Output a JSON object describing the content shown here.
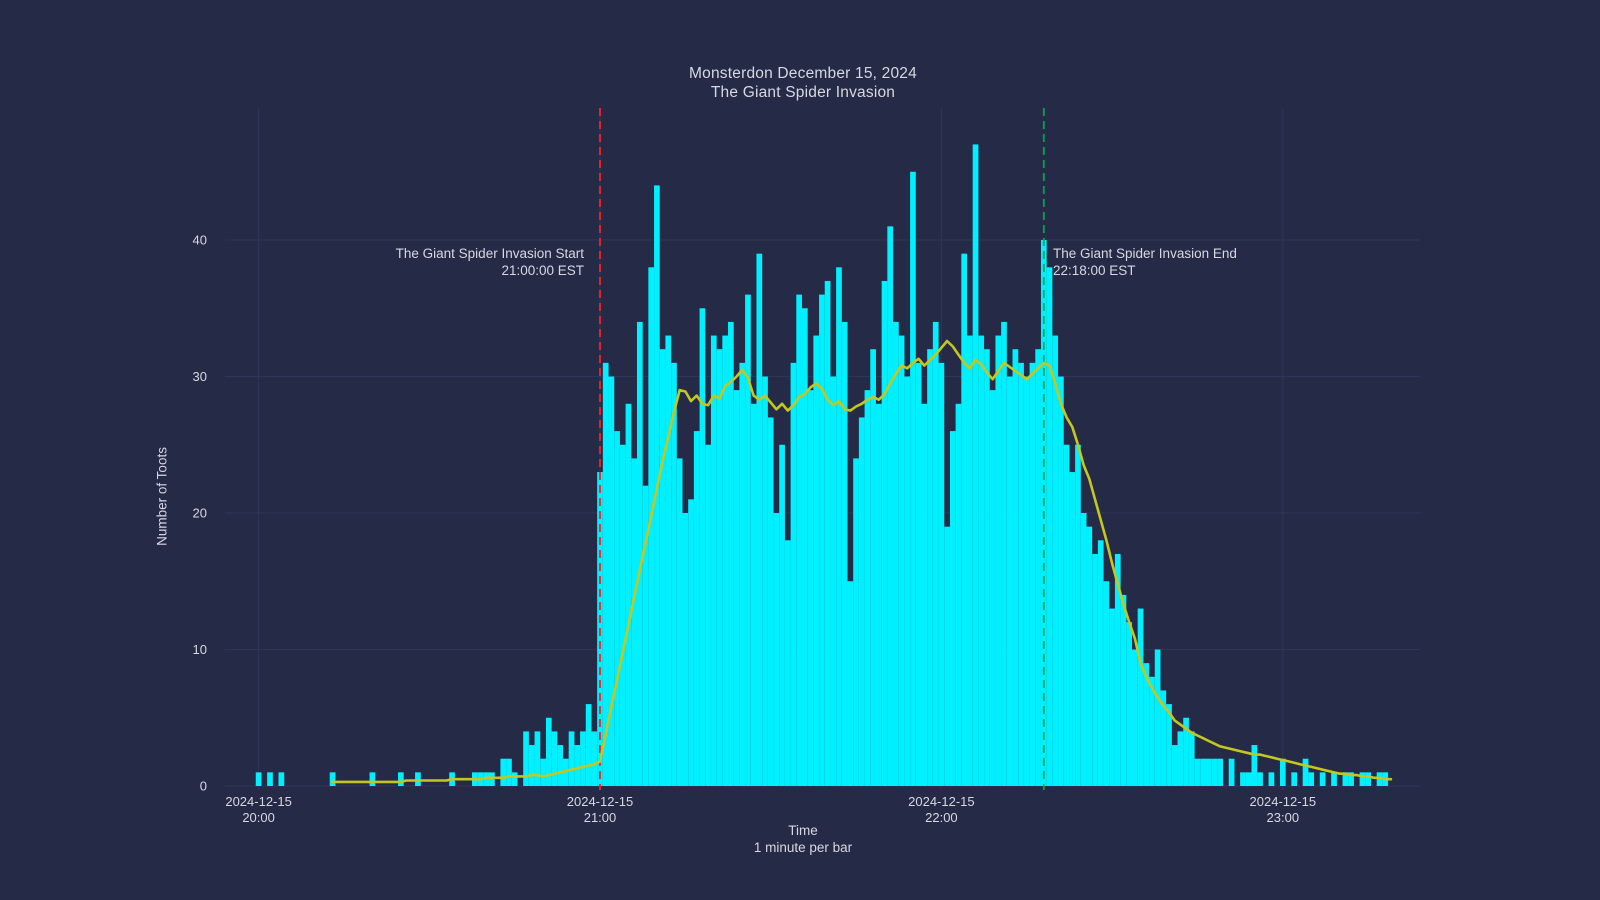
{
  "figure": {
    "background_color": "#252b47",
    "grid_color": "#2e355a",
    "text_color": "#d6d8e0",
    "title_line1": "Monsterdon December 15, 2024",
    "title_line2": "The Giant Spider Invasion"
  },
  "chart_data": {
    "type": "bar",
    "title": "Monsterdon December 15, 2024 — The Giant Spider Invasion",
    "xlabel": "Time",
    "xlabel_sub": "1 minute per bar",
    "ylabel": "Number of Toots",
    "start_time": "2024-12-15 19:55 EST",
    "minutes_per_bar": 1,
    "ylim": [
      0,
      48
    ],
    "y_ticks": [
      0,
      10,
      20,
      30,
      40
    ],
    "x_ticks": [
      {
        "index": 5,
        "label1": "2024-12-15",
        "label2": "20:00"
      },
      {
        "index": 65,
        "label1": "2024-12-15",
        "label2": "21:00"
      },
      {
        "index": 125,
        "label1": "2024-12-15",
        "label2": "22:00"
      },
      {
        "index": 185,
        "label1": "2024-12-15",
        "label2": "23:00"
      }
    ],
    "bar_color": "#00f0ff",
    "bar_values": [
      0,
      0,
      0,
      0,
      0,
      1,
      0,
      1,
      0,
      1,
      0,
      0,
      0,
      0,
      0,
      0,
      0,
      0,
      1,
      0,
      0,
      0,
      0,
      0,
      0,
      1,
      0,
      0,
      0,
      0,
      1,
      0,
      0,
      1,
      0,
      0,
      0,
      0,
      0,
      1,
      0,
      0,
      0,
      1,
      1,
      1,
      1,
      0,
      2,
      2,
      1,
      0,
      4,
      3,
      4,
      2,
      5,
      4,
      3,
      2,
      4,
      3,
      4,
      6,
      4,
      23,
      31,
      30,
      26,
      25,
      28,
      24,
      34,
      22,
      38,
      44,
      32,
      33,
      31,
      24,
      20,
      21,
      26,
      35,
      25,
      33,
      32,
      33,
      34,
      29,
      31,
      36,
      28,
      39,
      30,
      27,
      20,
      25,
      18,
      31,
      36,
      35,
      29,
      33,
      36,
      37,
      30,
      38,
      34,
      15,
      24,
      27,
      29,
      32,
      28,
      37,
      41,
      34,
      33,
      30,
      45,
      31,
      28,
      32,
      34,
      31,
      19,
      26,
      28,
      39,
      33,
      47,
      33,
      32,
      29,
      33,
      34,
      30,
      32,
      31,
      30,
      31,
      32,
      40,
      38,
      33,
      30,
      25,
      23,
      25,
      20,
      19,
      17,
      18,
      15,
      13,
      17,
      14,
      12,
      10,
      13,
      9,
      8,
      10,
      7,
      6,
      3,
      4,
      5,
      4,
      2,
      2,
      2,
      2,
      2,
      0,
      2,
      0,
      1,
      1,
      3,
      1,
      0,
      1,
      0,
      2,
      0,
      1,
      0,
      2,
      1,
      0,
      1,
      0,
      1,
      0,
      1,
      1,
      0,
      1,
      1,
      0,
      1,
      1
    ],
    "line": {
      "name": "smoothed-average",
      "color": "#c4c71e",
      "start_index": 18,
      "values": [
        0.3,
        0.3,
        0.3,
        0.3,
        0.3,
        0.3,
        0.3,
        0.3,
        0.3,
        0.3,
        0.3,
        0.3,
        0.3,
        0.4,
        0.4,
        0.4,
        0.4,
        0.4,
        0.4,
        0.4,
        0.4,
        0.5,
        0.5,
        0.5,
        0.5,
        0.5,
        0.5,
        0.6,
        0.6,
        0.6,
        0.6,
        0.7,
        0.7,
        0.7,
        0.7,
        0.8,
        0.8,
        0.7,
        0.8,
        0.9,
        1.0,
        1.1,
        1.2,
        1.3,
        1.4,
        1.5,
        1.6,
        1.8,
        3.8,
        5.8,
        7.8,
        9.8,
        11.8,
        13.8,
        15.8,
        17.8,
        19.8,
        21.8,
        23.8,
        25.6,
        27.4,
        29.0,
        28.9,
        28.2,
        28.6,
        28.0,
        27.9,
        28.6,
        28.4,
        29.3,
        29.6,
        30.0,
        30.5,
        29.9,
        28.6,
        28.3,
        28.6,
        28.1,
        27.6,
        28.0,
        27.5,
        27.9,
        28.5,
        28.7,
        29.2,
        29.5,
        29.1,
        28.3,
        27.9,
        28.2,
        27.6,
        27.5,
        27.8,
        28.0,
        28.3,
        28.5,
        28.3,
        28.7,
        29.5,
        30.2,
        30.8,
        30.6,
        31.0,
        31.3,
        30.8,
        31.2,
        31.6,
        32.1,
        32.6,
        32.2,
        31.6,
        31.0,
        30.6,
        31.2,
        30.9,
        30.3,
        29.8,
        30.4,
        31.0,
        30.7,
        30.4,
        30.1,
        29.8,
        30.2,
        30.6,
        31.0,
        30.8,
        29.5,
        28.0,
        27.0,
        26.3,
        25.0,
        23.5,
        22.5,
        21.0,
        19.5,
        18.0,
        16.3,
        14.8,
        13.3,
        12.0,
        10.8,
        9.0,
        8.0,
        7.2,
        6.5,
        5.9,
        5.4,
        4.8,
        4.5,
        4.2,
        3.9,
        3.7,
        3.5,
        3.3,
        3.1,
        2.9,
        2.8,
        2.7,
        2.6,
        2.5,
        2.4,
        2.3,
        2.3,
        2.2,
        2.1,
        2.0,
        1.9,
        1.8,
        1.7,
        1.6,
        1.5,
        1.4,
        1.3,
        1.2,
        1.1,
        1.0,
        0.9,
        0.9,
        0.8,
        0.8,
        0.7,
        0.7,
        0.6,
        0.6,
        0.5,
        0.5
      ]
    },
    "events": [
      {
        "id": "start",
        "label1": "The Giant Spider Invasion Start",
        "label2": "21:00:00 EST",
        "index": 65,
        "color": "#ff2020",
        "style": "dashed",
        "label_side": "left"
      },
      {
        "id": "end",
        "label1": "The Giant Spider Invasion End",
        "label2": "22:18:00 EST",
        "index": 143,
        "color": "#00a550",
        "style": "dashed",
        "label_side": "right"
      }
    ],
    "legend_position": "none",
    "grid": true
  }
}
